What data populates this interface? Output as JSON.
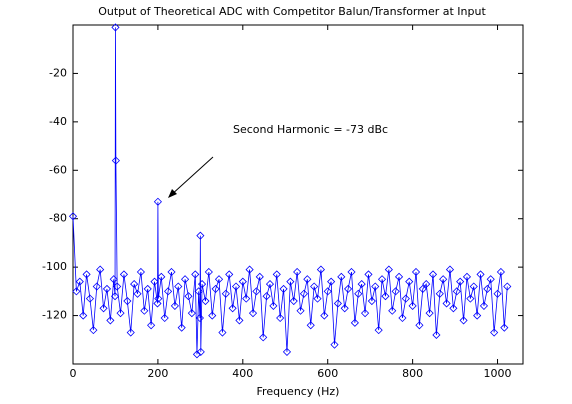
{
  "chart_data": {
    "type": "line",
    "title": "Output of Theoretical ADC with Competitor Balun/Transformer at Input",
    "xlabel": "Frequency (Hz)",
    "annotation": "Second Harmonic = -73 dBc",
    "xlim": [
      0,
      1060
    ],
    "ylim": [
      -140,
      0
    ],
    "xticks": [
      0,
      200,
      400,
      600,
      800,
      1000
    ],
    "yticks": [
      -120,
      -100,
      -80,
      -60,
      -40,
      -20
    ],
    "grid": false,
    "marker": "diamond",
    "x": [
      0,
      8,
      16,
      24,
      32,
      40,
      48,
      56,
      64,
      72,
      80,
      88,
      96,
      99,
      100,
      101,
      104,
      112,
      120,
      128,
      136,
      144,
      152,
      160,
      168,
      176,
      184,
      192,
      199,
      200,
      201,
      208,
      216,
      224,
      232,
      240,
      248,
      256,
      264,
      272,
      280,
      288,
      292,
      296,
      299,
      300,
      301,
      304,
      312,
      320,
      328,
      336,
      344,
      352,
      360,
      368,
      376,
      384,
      392,
      400,
      408,
      416,
      424,
      432,
      440,
      448,
      456,
      464,
      472,
      480,
      488,
      496,
      504,
      512,
      520,
      528,
      536,
      544,
      552,
      560,
      568,
      576,
      584,
      592,
      600,
      608,
      616,
      624,
      632,
      640,
      648,
      656,
      664,
      672,
      680,
      688,
      696,
      704,
      712,
      720,
      728,
      736,
      744,
      752,
      760,
      768,
      776,
      784,
      792,
      800,
      808,
      816,
      824,
      832,
      840,
      848,
      856,
      864,
      872,
      880,
      888,
      896,
      904,
      912,
      920,
      928,
      936,
      944,
      952,
      960,
      968,
      976,
      984,
      992,
      1000,
      1008,
      1016,
      1023
    ],
    "series": [
      {
        "color": "#0000ff",
        "values": [
          -79,
          -110,
          -106,
          -120,
          -103,
          -113,
          -126,
          -108,
          -101,
          -117,
          -109,
          -122,
          -105,
          -112,
          -1,
          -56,
          -108,
          -119,
          -103,
          -114,
          -127,
          -107,
          -111,
          -102,
          -118,
          -109,
          -124,
          -106,
          -115,
          -73,
          -113,
          -104,
          -121,
          -110,
          -102,
          -116,
          -108,
          -125,
          -105,
          -112,
          -119,
          -103,
          -136,
          -110,
          -121,
          -87,
          -135,
          -107,
          -114,
          -102,
          -120,
          -109,
          -105,
          -127,
          -111,
          -103,
          -117,
          -108,
          -122,
          -106,
          -113,
          -101,
          -119,
          -110,
          -104,
          -129,
          -112,
          -107,
          -116,
          -103,
          -121,
          -109,
          -135,
          -106,
          -114,
          -102,
          -118,
          -111,
          -105,
          -124,
          -108,
          -113,
          -101,
          -120,
          -110,
          -106,
          -132,
          -115,
          -104,
          -117,
          -109,
          -102,
          -123,
          -111,
          -107,
          -119,
          -103,
          -114,
          -108,
          -126,
          -105,
          -112,
          -101,
          -118,
          -110,
          -104,
          -121,
          -113,
          -106,
          -116,
          -102,
          -124,
          -109,
          -107,
          -119,
          -103,
          -128,
          -111,
          -105,
          -115,
          -101,
          -117,
          -110,
          -106,
          -122,
          -104,
          -113,
          -108,
          -120,
          -103,
          -116,
          -109,
          -105,
          -127,
          -111,
          -102,
          -125,
          -108
        ]
      }
    ]
  }
}
